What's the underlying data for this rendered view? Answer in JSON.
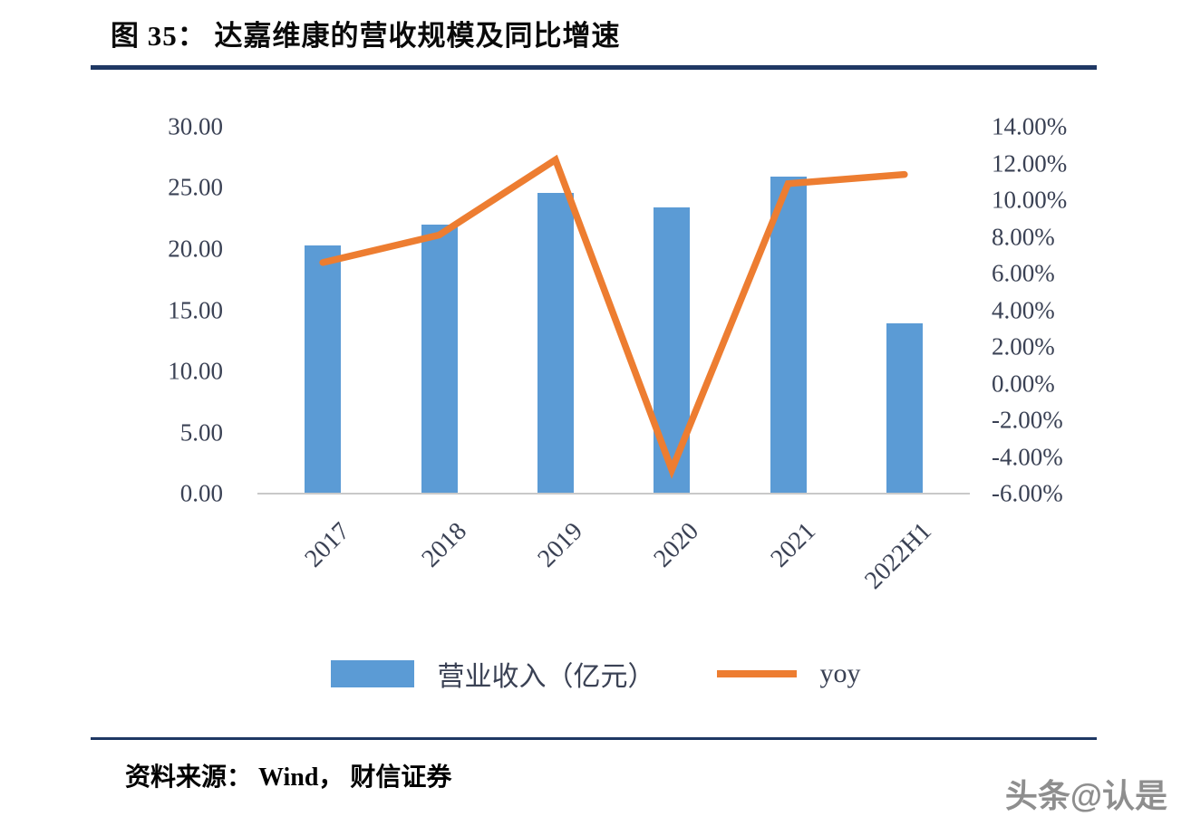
{
  "figure": {
    "title": "图 35：  达嘉维康的营收规模及同比增速",
    "source": "资料来源： Wind，  财信证券",
    "watermark": "头条@认是"
  },
  "colors": {
    "bar": "#5B9BD5",
    "line": "#ED7D31",
    "rule": "#1F3864",
    "axis_text": "#3A4154"
  },
  "chart_data": {
    "type": "bar",
    "subtype": "bar+line combo, dual axis",
    "categories": [
      "2017",
      "2018",
      "2019",
      "2020",
      "2021",
      "2022H1"
    ],
    "series": [
      {
        "name": "营业收入（亿元）",
        "type": "bar",
        "axis": "left",
        "color": "#5B9BD5",
        "values": [
          20.3,
          22.0,
          24.6,
          23.4,
          25.9,
          13.9
        ]
      },
      {
        "name": "yoy",
        "type": "line",
        "axis": "right",
        "color": "#ED7D31",
        "values": [
          6.6,
          8.1,
          12.2,
          -4.7,
          10.9,
          11.4
        ]
      }
    ],
    "left_axis": {
      "min": 0,
      "max": 30,
      "ticks": [
        "30.00",
        "25.00",
        "20.00",
        "15.00",
        "10.00",
        "5.00",
        "0.00"
      ]
    },
    "right_axis": {
      "min": -6,
      "max": 14,
      "ticks": [
        "14.00%",
        "12.00%",
        "10.00%",
        "8.00%",
        "6.00%",
        "4.00%",
        "2.00%",
        "0.00%",
        "-2.00%",
        "-4.00%",
        "-6.00%"
      ]
    },
    "grid": false,
    "legend_position": "bottom",
    "title": "达嘉维康的营收规模及同比增速",
    "xlabel": "",
    "ylabel_left": "",
    "ylabel_right": ""
  }
}
